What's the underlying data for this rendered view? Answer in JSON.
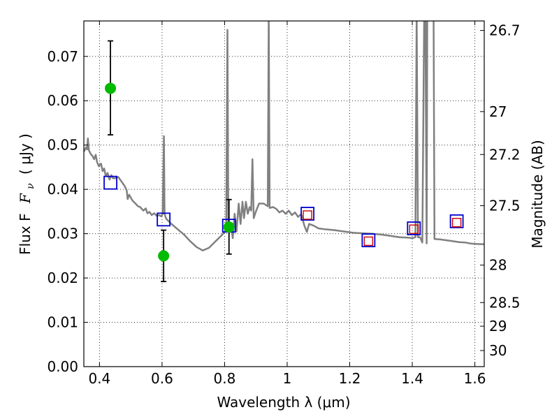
{
  "chart_data": {
    "type": "scatter",
    "xlabel": "Wavelength  λ (μm)",
    "ylabel": "Flux  F",
    "ylabel_sub": "ν",
    "ylabel_unit": "( μJy )",
    "y2label": "Magnitude (AB)",
    "xlim": [
      0.35,
      1.63
    ],
    "ylim": [
      0.0,
      0.078
    ],
    "grid": true,
    "x_ticks": [
      0.4,
      0.6,
      0.8,
      1.0,
      1.2,
      1.4,
      1.6
    ],
    "x_tick_labels": [
      "0.4",
      "0.6",
      "0.8",
      "1",
      "1.2",
      "1.4",
      "1.6"
    ],
    "y_ticks": [
      0.0,
      0.01,
      0.02,
      0.03,
      0.04,
      0.05,
      0.06,
      0.07
    ],
    "y_tick_labels": [
      "0.00",
      "0.01",
      "0.02",
      "0.03",
      "0.04",
      "0.05",
      "0.06",
      "0.07"
    ],
    "y2_ticks": [
      {
        "label": "26.7",
        "mag": 26.7
      },
      {
        "label": "27",
        "mag": 27.0
      },
      {
        "label": "27.2",
        "mag": 27.2
      },
      {
        "label": "27.5",
        "mag": 27.5
      },
      {
        "label": "28",
        "mag": 28.0
      },
      {
        "label": "28.5",
        "mag": 28.5
      },
      {
        "label": "29",
        "mag": 29.0
      },
      {
        "label": "30",
        "mag": 30.0
      }
    ],
    "spectrum": {
      "color": "#808080",
      "points": [
        [
          0.35,
          0.0485
        ],
        [
          0.357,
          0.0495
        ],
        [
          0.36,
          0.049
        ],
        [
          0.363,
          0.0515
        ],
        [
          0.366,
          0.0488
        ],
        [
          0.372,
          0.048
        ],
        [
          0.378,
          0.0475
        ],
        [
          0.383,
          0.0468
        ],
        [
          0.388,
          0.0478
        ],
        [
          0.392,
          0.0462
        ],
        [
          0.398,
          0.0452
        ],
        [
          0.405,
          0.0458
        ],
        [
          0.41,
          0.0441
        ],
        [
          0.415,
          0.0447
        ],
        [
          0.42,
          0.043
        ],
        [
          0.426,
          0.0437
        ],
        [
          0.432,
          0.0422
        ],
        [
          0.438,
          0.0432
        ],
        [
          0.443,
          0.0425
        ],
        [
          0.45,
          0.0425
        ],
        [
          0.46,
          0.0428
        ],
        [
          0.47,
          0.0418
        ],
        [
          0.48,
          0.0408
        ],
        [
          0.487,
          0.0398
        ],
        [
          0.49,
          0.0378
        ],
        [
          0.495,
          0.0388
        ],
        [
          0.505,
          0.0375
        ],
        [
          0.515,
          0.0368
        ],
        [
          0.523,
          0.0362
        ],
        [
          0.53,
          0.036
        ],
        [
          0.54,
          0.0352
        ],
        [
          0.548,
          0.0357
        ],
        [
          0.553,
          0.0346
        ],
        [
          0.56,
          0.0349
        ],
        [
          0.567,
          0.0342
        ],
        [
          0.575,
          0.0346
        ],
        [
          0.583,
          0.034
        ],
        [
          0.59,
          0.0342
        ],
        [
          0.598,
          0.0339
        ],
        [
          0.602,
          0.0345
        ],
        [
          0.606,
          0.052
        ],
        [
          0.608,
          0.0345
        ],
        [
          0.613,
          0.0334
        ],
        [
          0.63,
          0.0322
        ],
        [
          0.65,
          0.031
        ],
        [
          0.67,
          0.0298
        ],
        [
          0.69,
          0.0283
        ],
        [
          0.71,
          0.027
        ],
        [
          0.73,
          0.0262
        ],
        [
          0.75,
          0.0268
        ],
        [
          0.77,
          0.0282
        ],
        [
          0.79,
          0.0296
        ],
        [
          0.805,
          0.0308
        ],
        [
          0.809,
          0.076
        ],
        [
          0.812,
          0.031
        ],
        [
          0.82,
          0.0322
        ],
        [
          0.826,
          0.029
        ],
        [
          0.832,
          0.0345
        ],
        [
          0.838,
          0.0305
        ],
        [
          0.845,
          0.0368
        ],
        [
          0.851,
          0.0322
        ],
        [
          0.857,
          0.0372
        ],
        [
          0.862,
          0.0335
        ],
        [
          0.868,
          0.0372
        ],
        [
          0.874,
          0.0345
        ],
        [
          0.88,
          0.036
        ],
        [
          0.885,
          0.0352
        ],
        [
          0.889,
          0.0468
        ],
        [
          0.893,
          0.0335
        ],
        [
          0.9,
          0.035
        ],
        [
          0.91,
          0.0368
        ],
        [
          0.925,
          0.0368
        ],
        [
          0.938,
          0.0362
        ],
        [
          0.941,
          0.08
        ],
        [
          0.944,
          0.0358
        ],
        [
          0.955,
          0.036
        ],
        [
          0.965,
          0.0356
        ],
        [
          0.975,
          0.0348
        ],
        [
          0.985,
          0.0352
        ],
        [
          0.995,
          0.0345
        ],
        [
          1.005,
          0.0352
        ],
        [
          1.015,
          0.0342
        ],
        [
          1.025,
          0.0348
        ],
        [
          1.035,
          0.0338
        ],
        [
          1.045,
          0.0344
        ],
        [
          1.055,
          0.0318
        ],
        [
          1.063,
          0.0304
        ],
        [
          1.07,
          0.0322
        ],
        [
          1.085,
          0.0318
        ],
        [
          1.1,
          0.0312
        ],
        [
          1.12,
          0.031
        ],
        [
          1.15,
          0.0308
        ],
        [
          1.18,
          0.0305
        ],
        [
          1.21,
          0.0302
        ],
        [
          1.24,
          0.0301
        ],
        [
          1.27,
          0.03
        ],
        [
          1.3,
          0.0298
        ],
        [
          1.33,
          0.0295
        ],
        [
          1.36,
          0.0292
        ],
        [
          1.385,
          0.0291
        ],
        [
          1.4,
          0.029
        ],
        [
          1.41,
          0.0292
        ],
        [
          1.414,
          0.08
        ],
        [
          1.418,
          0.0292
        ],
        [
          1.425,
          0.0292
        ],
        [
          1.432,
          0.028
        ],
        [
          1.438,
          0.08
        ],
        [
          1.442,
          0.08
        ],
        [
          1.446,
          0.0278
        ],
        [
          1.448,
          0.08
        ],
        [
          1.462,
          0.08
        ],
        [
          1.468,
          0.08
        ],
        [
          1.471,
          0.0288
        ],
        [
          1.49,
          0.0287
        ],
        [
          1.52,
          0.0284
        ],
        [
          1.55,
          0.0281
        ],
        [
          1.57,
          0.028
        ],
        [
          1.585,
          0.0278
        ],
        [
          1.6,
          0.0277
        ],
        [
          1.63,
          0.0276
        ]
      ]
    },
    "measurements": {
      "color": "#00bb00",
      "points": [
        {
          "x": 0.435,
          "y": 0.0628,
          "yerr_low": 0.0523,
          "yerr_high": 0.0735
        },
        {
          "x": 0.605,
          "y": 0.025,
          "yerr_low": 0.0192,
          "yerr_high": 0.0308
        },
        {
          "x": 0.814,
          "y": 0.0315,
          "yerr_low": 0.0254,
          "yerr_high": 0.0377
        }
      ]
    },
    "synthetic_photometry": {
      "color": "#0000cc",
      "points": [
        {
          "x": 0.435,
          "y": 0.0415
        },
        {
          "x": 0.605,
          "y": 0.0332
        },
        {
          "x": 0.814,
          "y": 0.0318
        },
        {
          "x": 1.065,
          "y": 0.0345
        },
        {
          "x": 1.26,
          "y": 0.0285
        },
        {
          "x": 1.405,
          "y": 0.0312
        },
        {
          "x": 1.542,
          "y": 0.0328
        }
      ]
    },
    "model_photometry": {
      "color": "#cc0000",
      "points": [
        {
          "x": 1.065,
          "y": 0.0342
        },
        {
          "x": 1.26,
          "y": 0.0283
        },
        {
          "x": 1.405,
          "y": 0.031
        },
        {
          "x": 1.542,
          "y": 0.0325
        }
      ]
    }
  }
}
